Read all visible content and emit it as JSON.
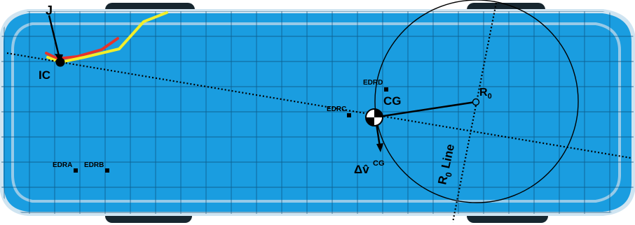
{
  "labels": {
    "j": "J",
    "ic": "IC",
    "cg": "CG",
    "r0_base": "R",
    "r0_sub": "0",
    "r0_line_base": "R",
    "r0_line_sub": "0",
    "r0_line_suffix": " Line",
    "dv_symbol": "Δv̂",
    "dv_sup": "CG",
    "edra": "EDRA",
    "edrb": "EDRB",
    "edrc": "EDRC",
    "edrd": "EDRD"
  },
  "colors": {
    "background_blue": "#1a9de0",
    "grid": "#0a4f7a",
    "body_outline": "#cfe4f1",
    "tire": "#17262f",
    "trajectory_red": "#e8322a",
    "trajectory_yellow": "#f2ee2a",
    "lines": "#000000"
  },
  "icons": {
    "cg_marker": "cg-target-icon",
    "ic_marker": "ic-dot-icon",
    "r0_marker": "r0-circle-icon",
    "sensor_marker": "sensor-square-icon"
  }
}
